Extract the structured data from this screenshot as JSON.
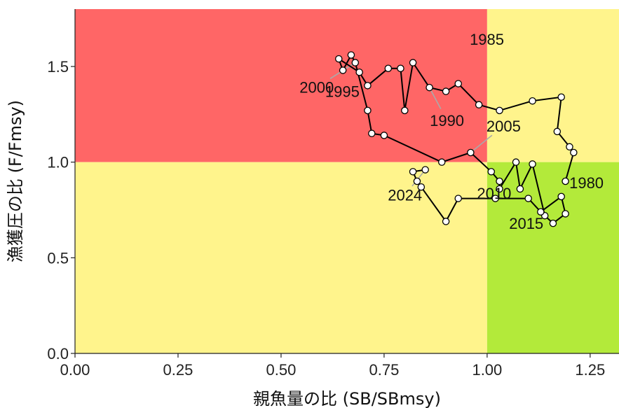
{
  "chart_data": {
    "type": "scatter",
    "title": "",
    "xlabel": "親魚量の比 (SB/SBmsy)",
    "ylabel": "漁獲圧の比 (F/Fmsy)",
    "xlim": [
      0.0,
      1.32
    ],
    "ylim": [
      0.0,
      1.8
    ],
    "xticks": [
      0.0,
      0.25,
      0.5,
      0.75,
      1.0,
      1.25
    ],
    "xtick_labels": [
      "0.00",
      "0.25",
      "0.50",
      "0.75",
      "1.00",
      "1.25"
    ],
    "yticks": [
      0.0,
      0.5,
      1.0,
      1.5
    ],
    "ytick_labels": [
      "0.0",
      "0.5",
      "1.0",
      "1.5"
    ],
    "grid": false,
    "background_zones": [
      {
        "name": "overfished-and-overfishing",
        "color": "#ff6666",
        "x": [
          0.0,
          1.0
        ],
        "y": [
          1.0,
          1.8
        ]
      },
      {
        "name": "overfishing-only",
        "color": "#fff48c",
        "x": [
          1.0,
          1.32
        ],
        "y": [
          1.0,
          1.8
        ]
      },
      {
        "name": "overfished-only",
        "color": "#fff48c",
        "x": [
          0.0,
          1.0
        ],
        "y": [
          0.0,
          1.0
        ]
      },
      {
        "name": "healthy",
        "color": "#b3ea3a",
        "x": [
          1.0,
          1.32
        ],
        "y": [
          0.0,
          1.0
        ]
      }
    ],
    "series": [
      {
        "line_color": "#000000",
        "marker_fill": "#ffffff",
        "marker_edge": "#000000",
        "years": [
          1980,
          1981,
          1982,
          1983,
          1984,
          1985,
          1986,
          1987,
          1988,
          1989,
          1990,
          1991,
          1992,
          1993,
          1994,
          1995,
          1996,
          1997,
          1998,
          1999,
          2000,
          2001,
          2002,
          2003,
          2004,
          2005,
          2006,
          2007,
          2008,
          2009,
          2010,
          2011,
          2012,
          2013,
          2014,
          2015,
          2016,
          2017,
          2018,
          2019,
          2020,
          2021,
          2022,
          2023,
          2024
        ],
        "x": [
          1.19,
          1.21,
          1.2,
          1.17,
          1.18,
          1.11,
          1.03,
          0.98,
          0.93,
          0.9,
          0.86,
          0.82,
          0.8,
          0.79,
          0.76,
          0.71,
          0.69,
          0.64,
          0.65,
          0.67,
          0.68,
          0.71,
          0.72,
          0.75,
          0.89,
          0.96,
          1.01,
          1.03,
          1.03,
          1.07,
          1.08,
          1.11,
          1.14,
          1.16,
          1.19,
          1.18,
          1.13,
          1.1,
          1.02,
          0.93,
          0.9,
          0.84,
          0.83,
          0.82,
          0.85
        ],
        "y": [
          0.9,
          1.05,
          1.08,
          1.16,
          1.34,
          1.32,
          1.27,
          1.3,
          1.41,
          1.37,
          1.39,
          1.52,
          1.27,
          1.49,
          1.49,
          1.4,
          1.47,
          1.54,
          1.48,
          1.56,
          1.52,
          1.27,
          1.15,
          1.14,
          1.0,
          1.05,
          0.95,
          0.9,
          0.86,
          1.0,
          0.86,
          0.99,
          0.72,
          0.68,
          0.73,
          0.82,
          0.74,
          0.81,
          0.81,
          0.81,
          0.69,
          0.87,
          0.9,
          0.95,
          0.96
        ]
      }
    ],
    "annotations": [
      {
        "text": "1980",
        "year": 1980
      },
      {
        "text": "1985",
        "year": 1985
      },
      {
        "text": "1990",
        "year": 1990
      },
      {
        "text": "1995",
        "year": 1995
      },
      {
        "text": "2000",
        "year": 2000
      },
      {
        "text": "2005",
        "year": 2005
      },
      {
        "text": "2010",
        "year": 2010
      },
      {
        "text": "2015",
        "year": 2015
      },
      {
        "text": "2024",
        "year": 2024
      }
    ]
  }
}
